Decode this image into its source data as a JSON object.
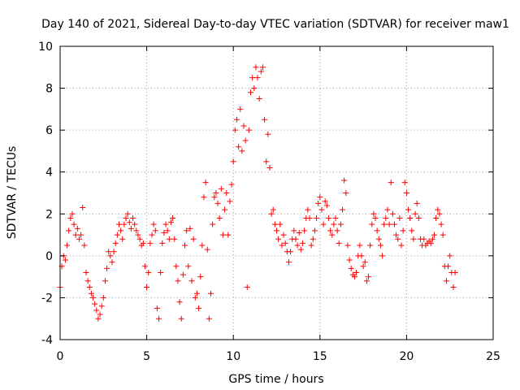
{
  "chart_data": {
    "type": "scatter",
    "title": "Day 140 of 2021, Sidereal Day-to-day VTEC variation (SDTVAR) for receiver maw1",
    "xlabel": "GPS time / hours",
    "ylabel": "SDTVAR / TECUs",
    "xlim": [
      0,
      25
    ],
    "ylim": [
      -4,
      10
    ],
    "x_ticks": [
      0,
      5,
      10,
      15,
      20,
      25
    ],
    "y_ticks": [
      -4,
      -2,
      0,
      2,
      4,
      6,
      8,
      10
    ],
    "x_tick_labels": [
      "0",
      "5",
      "10",
      "15",
      "20",
      "25"
    ],
    "y_tick_labels": [
      "-4",
      "-2",
      "0",
      "2",
      "4",
      "6",
      "8",
      "10"
    ],
    "grid": true,
    "marker": "+",
    "color": "#ff0000",
    "series": [
      {
        "name": "maw1",
        "x": [
          0.0,
          0.1,
          0.2,
          0.3,
          0.4,
          0.5,
          0.6,
          0.7,
          0.8,
          0.9,
          1.0,
          1.1,
          1.2,
          1.3,
          1.4,
          1.5,
          1.6,
          1.7,
          1.8,
          1.9,
          2.0,
          2.1,
          2.2,
          2.3,
          2.4,
          2.5,
          2.6,
          2.7,
          2.8,
          2.9,
          3.0,
          3.1,
          3.2,
          3.3,
          3.4,
          3.5,
          3.6,
          3.7,
          3.8,
          3.9,
          4.0,
          4.1,
          4.2,
          4.3,
          4.4,
          4.5,
          4.6,
          4.7,
          4.8,
          4.9,
          5.0,
          5.1,
          5.2,
          5.3,
          5.4,
          5.5,
          5.6,
          5.7,
          5.8,
          5.9,
          6.0,
          6.1,
          6.2,
          6.3,
          6.4,
          6.5,
          6.6,
          6.7,
          6.8,
          6.9,
          7.0,
          7.1,
          7.2,
          7.3,
          7.4,
          7.5,
          7.6,
          7.7,
          7.8,
          7.9,
          8.0,
          8.1,
          8.2,
          8.3,
          8.4,
          8.5,
          8.6,
          8.7,
          8.8,
          8.9,
          9.0,
          9.1,
          9.2,
          9.3,
          9.4,
          9.5,
          9.6,
          9.7,
          9.8,
          9.9,
          10.0,
          10.1,
          10.2,
          10.3,
          10.4,
          10.5,
          10.6,
          10.7,
          10.8,
          10.9,
          11.0,
          11.1,
          11.2,
          11.3,
          11.4,
          11.5,
          11.6,
          11.7,
          11.8,
          11.9,
          12.0,
          12.1,
          12.2,
          12.3,
          12.4,
          12.5,
          12.6,
          12.7,
          12.8,
          12.9,
          13.0,
          13.1,
          13.2,
          13.3,
          13.4,
          13.5,
          13.6,
          13.7,
          13.8,
          13.9,
          14.0,
          14.1,
          14.2,
          14.3,
          14.4,
          14.5,
          14.6,
          14.7,
          14.8,
          14.9,
          15.0,
          15.1,
          15.2,
          15.3,
          15.4,
          15.5,
          15.6,
          15.7,
          15.8,
          15.9,
          16.0,
          16.1,
          16.2,
          16.3,
          16.4,
          16.5,
          16.6,
          16.7,
          16.8,
          16.9,
          17.0,
          17.1,
          17.2,
          17.3,
          17.4,
          17.5,
          17.6,
          17.7,
          17.8,
          17.9,
          18.0,
          18.1,
          18.2,
          18.3,
          18.4,
          18.5,
          18.6,
          18.7,
          18.8,
          18.9,
          19.0,
          19.1,
          19.2,
          19.3,
          19.4,
          19.5,
          19.6,
          19.7,
          19.8,
          19.9,
          20.0,
          20.1,
          20.2,
          20.3,
          20.4,
          20.5,
          20.6,
          20.7,
          20.8,
          20.9,
          21.0,
          21.1,
          21.2,
          21.3,
          21.4,
          21.5,
          21.6,
          21.7,
          21.8,
          21.9,
          22.0,
          22.1,
          22.2,
          22.3,
          22.4,
          22.5,
          22.6,
          22.7,
          22.8
        ],
        "y": [
          -1.5,
          -0.5,
          0.0,
          -0.2,
          0.5,
          1.2,
          1.8,
          2.0,
          1.5,
          1.0,
          1.3,
          0.8,
          1.0,
          2.3,
          0.5,
          -0.8,
          -1.2,
          -1.5,
          -1.8,
          -2.0,
          -2.3,
          -2.6,
          -3.0,
          -2.8,
          -2.4,
          -2.0,
          -1.2,
          -0.6,
          0.2,
          0.0,
          -0.3,
          0.2,
          0.6,
          1.0,
          1.5,
          1.2,
          0.8,
          1.5,
          1.8,
          2.0,
          1.6,
          1.3,
          1.8,
          1.5,
          1.2,
          1.0,
          0.8,
          0.5,
          0.6,
          -0.5,
          -1.5,
          -0.8,
          0.6,
          1.0,
          1.5,
          1.2,
          -2.5,
          -3.0,
          -0.8,
          0.6,
          1.1,
          1.5,
          1.2,
          0.8,
          1.6,
          1.8,
          0.8,
          -0.5,
          -1.2,
          -2.2,
          -3.0,
          -0.9,
          0.5,
          1.2,
          -0.5,
          1.3,
          -1.2,
          0.8,
          -2.0,
          -1.8,
          -2.5,
          -1.0,
          0.5,
          2.8,
          3.5,
          0.3,
          -3.0,
          -1.8,
          1.5,
          2.8,
          3.0,
          2.5,
          1.8,
          3.2,
          1.0,
          2.2,
          3.0,
          1.0,
          2.6,
          3.4,
          4.5,
          6.0,
          6.5,
          5.2,
          7.0,
          5.0,
          6.2,
          5.5,
          -1.5,
          6.0,
          7.8,
          8.5,
          8.0,
          9.0,
          8.5,
          7.5,
          8.8,
          9.0,
          6.5,
          4.5,
          5.8,
          4.2,
          2.0,
          2.2,
          1.5,
          1.2,
          0.8,
          1.5,
          0.5,
          1.0,
          0.6,
          0.2,
          -0.3,
          0.2,
          0.8,
          1.2,
          0.8,
          0.5,
          1.1,
          0.3,
          0.6,
          1.2,
          1.8,
          2.2,
          1.8,
          0.5,
          0.8,
          1.2,
          1.8,
          2.5,
          2.8,
          2.2,
          1.5,
          2.6,
          2.4,
          1.8,
          1.2,
          1.0,
          1.5,
          1.8,
          1.2,
          0.6,
          1.5,
          2.2,
          3.6,
          3.0,
          0.5,
          -0.2,
          -0.6,
          -0.9,
          -1.0,
          -0.8,
          0.0,
          0.5,
          0.0,
          -0.5,
          -0.3,
          -1.2,
          -1.0,
          0.5,
          1.5,
          2.0,
          1.8,
          1.2,
          0.8,
          0.5,
          0.0,
          1.5,
          1.8,
          2.2,
          1.5,
          3.5,
          2.0,
          1.5,
          1.0,
          0.8,
          1.8,
          0.5,
          1.2,
          3.5,
          3.0,
          2.2,
          1.8,
          1.2,
          0.8,
          2.0,
          2.5,
          1.8,
          0.8,
          0.5,
          0.8,
          0.5,
          0.6,
          0.7,
          0.6,
          0.8,
          1.0,
          1.8,
          2.2,
          2.0,
          1.5,
          1.0,
          -0.5,
          -1.2,
          -0.5,
          0.0,
          -0.8,
          -1.5,
          -0.8
        ]
      }
    ]
  }
}
